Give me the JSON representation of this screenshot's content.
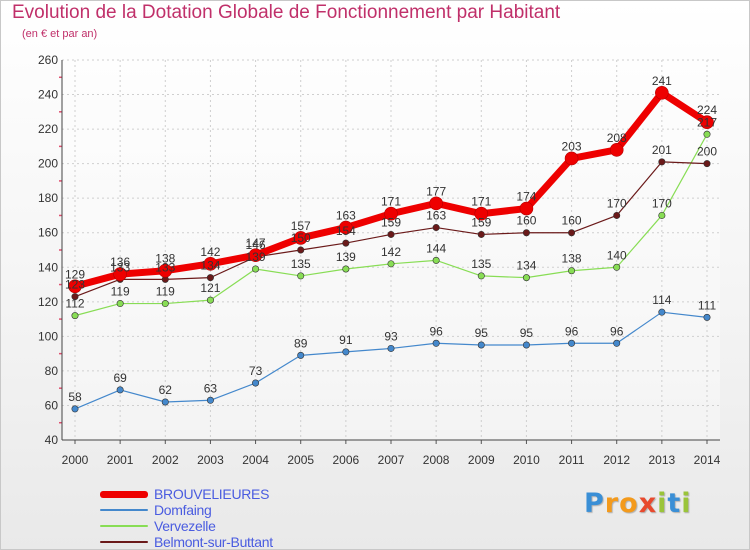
{
  "chart_data": {
    "type": "line",
    "title": "Evolution de la Dotation Globale de Fonctionnement par Habitant",
    "subtitle": "(en € et par an)",
    "xlabel": "",
    "ylabel": "",
    "ylim": [
      40,
      260
    ],
    "yticks": [
      40,
      60,
      80,
      100,
      120,
      140,
      160,
      180,
      200,
      220,
      240,
      260
    ],
    "categories": [
      "2000",
      "2001",
      "2002",
      "2003",
      "2004",
      "2005",
      "2006",
      "2007",
      "2008",
      "2009",
      "2010",
      "2011",
      "2012",
      "2013",
      "2014"
    ],
    "grid": true,
    "legend": "bottom-left",
    "series": [
      {
        "name": "BROUVELIEURES",
        "color": "#ee0000",
        "values": [
          129,
          136,
          138,
          142,
          147,
          157,
          163,
          171,
          177,
          171,
          174,
          203,
          208,
          241,
          224
        ]
      },
      {
        "name": "Domfaing",
        "color": "#4488cc",
        "values": [
          58,
          69,
          62,
          63,
          73,
          89,
          91,
          93,
          96,
          95,
          95,
          96,
          96,
          114,
          111
        ]
      },
      {
        "name": "Vervezelle",
        "color": "#88dd55",
        "values": [
          112,
          119,
          119,
          121,
          139,
          135,
          139,
          142,
          144,
          135,
          134,
          138,
          140,
          170,
          217
        ]
      },
      {
        "name": "Belmont-sur-Buttant",
        "color": "#6b1a1a",
        "values": [
          123,
          133,
          133,
          134,
          146,
          150,
          154,
          159,
          163,
          159,
          160,
          160,
          170,
          201,
          200
        ]
      }
    ]
  },
  "legend": {
    "label_color": "#4a5ce0"
  },
  "logo": {
    "letters": [
      "P",
      "r",
      "o",
      "x",
      "i",
      "t",
      "i"
    ],
    "colors": [
      "#3a8fd6",
      "#f39a1c",
      "#f39a1c",
      "#e84a2e",
      "#9ac43a",
      "#3a8fd6",
      "#9ac43a"
    ]
  }
}
